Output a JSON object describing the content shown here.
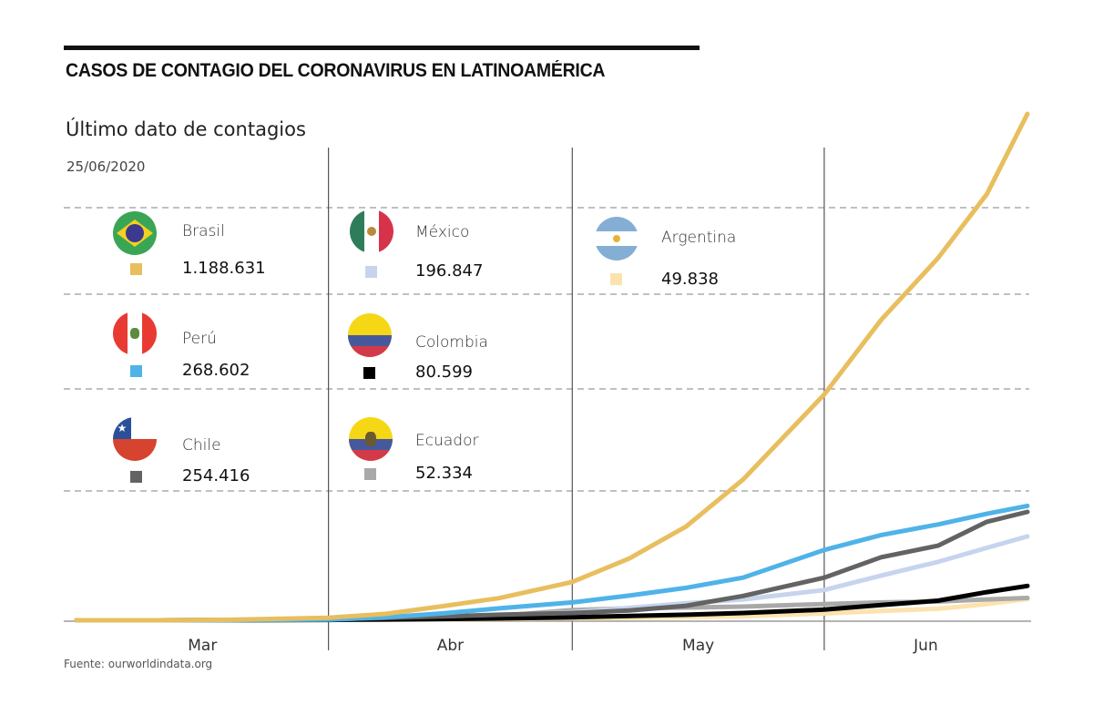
{
  "header": {
    "title": "CASOS DE CONTAGIO DEL CORONAVIRUS EN LATINOAMÉRICA",
    "subtitle": "Último dato de contagios",
    "date": "25/06/2020"
  },
  "footer": {
    "source": "Fuente: ourworldindata.org"
  },
  "legend": [
    {
      "country": "Brasil",
      "value": "1.188.631",
      "color": "#E8BE5E",
      "flag": "brazil-flag-icon"
    },
    {
      "country": "México",
      "value": "196.847",
      "color": "#C6D4EE",
      "flag": "mexico-flag-icon"
    },
    {
      "country": "Argentina",
      "value": "49.838",
      "color": "#FCE3AE",
      "flag": "argentina-flag-icon"
    },
    {
      "country": "Perú",
      "value": "268.602",
      "color": "#4FB3E8",
      "flag": "peru-flag-icon"
    },
    {
      "country": "Colombia",
      "value": "80.599",
      "color": "#000000",
      "flag": "colombia-flag-icon"
    },
    {
      "country": "Chile",
      "value": "254.416",
      "color": "#636363",
      "flag": "chile-flag-icon"
    },
    {
      "country": "Ecuador",
      "value": "52.334",
      "color": "#A9A9A9",
      "flag": "ecuador-flag-icon"
    }
  ],
  "chart_data": {
    "type": "line",
    "title": "CASOS DE CONTAGIO DEL CORONAVIRUS EN LATINOAMÉRICA",
    "subtitle": "Último dato de contagios",
    "xlabel": "",
    "ylabel": "",
    "x_tick_labels": [
      "Mar",
      "Abr",
      "May",
      "Jun"
    ],
    "x_range_days": [
      0,
      117
    ],
    "x_note": "day 0 = 01/03/2020, last point = 25/06/2020",
    "ylim": [
      0,
      1200000
    ],
    "grid": "horizontal dashed, unlabeled",
    "x": [
      0,
      10,
      20,
      31,
      38,
      45,
      52,
      61,
      68,
      75,
      82,
      92,
      99,
      106,
      112,
      117
    ],
    "series": [
      {
        "name": "Brasil",
        "color": "#E8BE5E",
        "values": [
          2,
          25,
          1500,
          6000,
          15000,
          33000,
          52000,
          90000,
          145000,
          220000,
          330000,
          530000,
          705000,
          850000,
          1000000,
          1188631
        ]
      },
      {
        "name": "Perú",
        "color": "#4FB3E8",
        "values": [
          0,
          10,
          400,
          1400,
          6800,
          16000,
          28000,
          42000,
          58000,
          76000,
          100000,
          165000,
          200000,
          225000,
          250000,
          268602
        ]
      },
      {
        "name": "Chile",
        "color": "#636363",
        "values": [
          0,
          70,
          750,
          3000,
          5500,
          9000,
          13000,
          17000,
          23000,
          34000,
          57000,
          100000,
          148000,
          175000,
          231000,
          254416
        ]
      },
      {
        "name": "México",
        "color": "#C6D4EE",
        "values": [
          5,
          20,
          200,
          1200,
          3200,
          6300,
          11000,
          19000,
          29000,
          40000,
          49000,
          71000,
          105000,
          137000,
          170000,
          196847
        ]
      },
      {
        "name": "Colombia",
        "color": "#000000",
        "values": [
          0,
          1,
          200,
          900,
          2000,
          3000,
          4300,
          7000,
          10000,
          13000,
          17000,
          25000,
          36000,
          46000,
          66000,
          80599
        ]
      },
      {
        "name": "Ecuador",
        "color": "#A9A9A9",
        "values": [
          0,
          15,
          260,
          2200,
          3600,
          7300,
          10000,
          24000,
          28000,
          30000,
          32000,
          38000,
          42000,
          44000,
          49000,
          52334
        ]
      },
      {
        "name": "Argentina",
        "color": "#FCE3AE",
        "values": [
          0,
          12,
          130,
          1050,
          1550,
          2200,
          3000,
          4400,
          5800,
          7500,
          9300,
          16000,
          22000,
          27000,
          38000,
          49838
        ]
      }
    ]
  }
}
